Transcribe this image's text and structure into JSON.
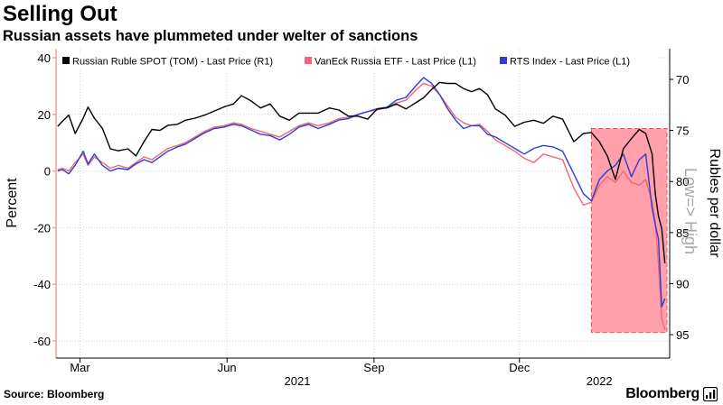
{
  "header": {
    "title": "Selling Out",
    "subtitle": "Russian assets have plummeted under welter of sanctions"
  },
  "footer": {
    "source": "Source: Bloomberg",
    "brand": "Bloomberg"
  },
  "chart_data": {
    "type": "line",
    "title": "Selling Out",
    "subtitle": "Russian assets have plummeted under welter of sanctions",
    "ylabel_left": "Percent",
    "ylabel_right": "Rubles per dollar",
    "right_axis_note": "Low=> High",
    "ylim_left": [
      -60,
      40
    ],
    "ylim_right": [
      68,
      97
    ],
    "right_axis_inverted": true,
    "left_ticks": [
      "40",
      "20",
      "0",
      "-20",
      "-40",
      "-60"
    ],
    "left_tick_values": [
      40,
      20,
      0,
      -20,
      -40,
      -60
    ],
    "right_ticks": [
      "70",
      "75",
      "80",
      "85",
      "90",
      "95"
    ],
    "right_tick_values": [
      70,
      75,
      80,
      85,
      90,
      95
    ],
    "x_tick_labels": [
      "Mar",
      "Jun",
      "Sep",
      "Dec"
    ],
    "x_tick_values": [
      "2021-03-01",
      "2021-06-01",
      "2021-09-01",
      "2021-12-01"
    ],
    "x_year_labels": [
      "2021",
      "2022"
    ],
    "x_year_values": [
      "2021-07-15",
      "2022-01-20"
    ],
    "xlim": [
      "2021-02-14",
      "2022-03-05"
    ],
    "grid": true,
    "legend_position": "top",
    "highlight": {
      "x_start": "2022-01-15",
      "x_end": "2022-03-05",
      "y_from": -57,
      "y_to": 15,
      "color": "#ff8f9c"
    },
    "series": [
      {
        "name": "Russian Ruble SPOT (TOM) - Last Price (R1)",
        "axis": "right",
        "color": "#000000",
        "x": [
          "2021-02-15",
          "2021-02-18",
          "2021-02-22",
          "2021-02-26",
          "2021-03-03",
          "2021-03-06",
          "2021-03-10",
          "2021-03-15",
          "2021-03-20",
          "2021-03-25",
          "2021-03-31",
          "2021-04-05",
          "2021-04-10",
          "2021-04-15",
          "2021-04-20",
          "2021-04-25",
          "2021-05-01",
          "2021-05-06",
          "2021-05-12",
          "2021-05-18",
          "2021-05-24",
          "2021-05-30",
          "2021-06-05",
          "2021-06-10",
          "2021-06-16",
          "2021-06-22",
          "2021-06-28",
          "2021-07-04",
          "2021-07-10",
          "2021-07-16",
          "2021-07-22",
          "2021-07-28",
          "2021-08-04",
          "2021-08-10",
          "2021-08-16",
          "2021-08-22",
          "2021-08-28",
          "2021-09-03",
          "2021-09-09",
          "2021-09-15",
          "2021-09-21",
          "2021-09-27",
          "2021-10-02",
          "2021-10-07",
          "2021-10-12",
          "2021-10-17",
          "2021-10-22",
          "2021-10-27",
          "2021-11-01",
          "2021-11-06",
          "2021-11-11",
          "2021-11-16",
          "2021-11-22",
          "2021-11-28",
          "2021-12-04",
          "2021-12-10",
          "2021-12-16",
          "2021-12-22",
          "2021-12-28",
          "2022-01-04",
          "2022-01-10",
          "2022-01-15",
          "2022-01-20",
          "2022-01-25",
          "2022-01-30",
          "2022-02-04",
          "2022-02-09",
          "2022-02-14",
          "2022-02-18",
          "2022-02-22",
          "2022-02-24",
          "2022-02-26",
          "2022-02-28",
          "2022-03-02"
        ],
        "values": [
          74.6,
          74.1,
          73.5,
          75.3,
          73.8,
          72.7,
          73.8,
          74.8,
          76.8,
          77.0,
          76.8,
          77.5,
          76.1,
          74.9,
          75.0,
          74.5,
          74.4,
          74.0,
          73.8,
          73.5,
          73.1,
          72.7,
          72.4,
          71.6,
          72.1,
          72.8,
          72.4,
          73.6,
          74.0,
          73.3,
          73.3,
          73.3,
          72.8,
          73.0,
          73.6,
          73.6,
          73.9,
          72.9,
          72.8,
          72.4,
          72.9,
          72.3,
          71.8,
          71.0,
          70.3,
          70.4,
          70.4,
          70.9,
          71.2,
          70.9,
          71.5,
          72.9,
          73.5,
          74.6,
          74.2,
          74.0,
          74.3,
          73.6,
          73.9,
          76.1,
          75.3,
          75.2,
          76.1,
          77.5,
          79.8,
          76.8,
          75.8,
          74.9,
          75.3,
          77.3,
          81.2,
          83.4,
          84.6,
          88.0
        ]
      },
      {
        "name": "VanEck Russia ETF - Last Price (L1)",
        "axis": "left",
        "color": "#f26671",
        "x": [
          "2021-02-15",
          "2021-02-18",
          "2021-02-22",
          "2021-02-26",
          "2021-03-03",
          "2021-03-06",
          "2021-03-10",
          "2021-03-15",
          "2021-03-20",
          "2021-03-25",
          "2021-03-31",
          "2021-04-05",
          "2021-04-10",
          "2021-04-15",
          "2021-04-20",
          "2021-04-25",
          "2021-05-01",
          "2021-05-06",
          "2021-05-12",
          "2021-05-18",
          "2021-05-24",
          "2021-05-30",
          "2021-06-05",
          "2021-06-10",
          "2021-06-16",
          "2021-06-22",
          "2021-06-28",
          "2021-07-04",
          "2021-07-10",
          "2021-07-16",
          "2021-07-22",
          "2021-07-28",
          "2021-08-04",
          "2021-08-10",
          "2021-08-16",
          "2021-08-22",
          "2021-08-28",
          "2021-09-03",
          "2021-09-09",
          "2021-09-15",
          "2021-09-21",
          "2021-09-27",
          "2021-10-02",
          "2021-10-07",
          "2021-10-12",
          "2021-10-17",
          "2021-10-22",
          "2021-10-27",
          "2021-11-01",
          "2021-11-06",
          "2021-11-11",
          "2021-11-16",
          "2021-11-22",
          "2021-11-28",
          "2021-12-04",
          "2021-12-10",
          "2021-12-16",
          "2021-12-22",
          "2021-12-28",
          "2022-01-04",
          "2022-01-10",
          "2022-01-15",
          "2022-01-20",
          "2022-01-25",
          "2022-01-30",
          "2022-02-04",
          "2022-02-09",
          "2022-02-14",
          "2022-02-18",
          "2022-02-22",
          "2022-02-24",
          "2022-02-26",
          "2022-02-28",
          "2022-03-02"
        ],
        "values": [
          0.5,
          1.0,
          0.0,
          3.0,
          6.0,
          2.0,
          5.0,
          3.0,
          1.0,
          2.0,
          1.0,
          3.0,
          5.0,
          4.0,
          6.0,
          8.0,
          9.0,
          10.0,
          12.0,
          14.0,
          15.5,
          16.0,
          17.0,
          16.5,
          15.0,
          14.0,
          13.0,
          12.0,
          14.0,
          16.0,
          17.0,
          16.0,
          17.0,
          18.5,
          19.0,
          20.0,
          21.0,
          21.5,
          22.5,
          24.0,
          25.0,
          28.5,
          31.0,
          30.0,
          27.0,
          23.0,
          19.0,
          17.0,
          16.0,
          16.5,
          14.0,
          11.0,
          9.0,
          7.0,
          4.5,
          3.0,
          6.0,
          5.0,
          4.0,
          -6.0,
          -12.0,
          -11.0,
          -5.0,
          -2.0,
          -4.0,
          0.0,
          -4.0,
          -5.0,
          -3.0,
          -11.0,
          -18.0,
          -33.0,
          -52.0,
          -56.0
        ]
      },
      {
        "name": "RTS Index - Last Price (L1)",
        "axis": "left",
        "color": "#2b3fd4",
        "x": [
          "2021-02-15",
          "2021-02-18",
          "2021-02-22",
          "2021-02-26",
          "2021-03-03",
          "2021-03-06",
          "2021-03-10",
          "2021-03-15",
          "2021-03-20",
          "2021-03-25",
          "2021-03-31",
          "2021-04-05",
          "2021-04-10",
          "2021-04-15",
          "2021-04-20",
          "2021-04-25",
          "2021-05-01",
          "2021-05-06",
          "2021-05-12",
          "2021-05-18",
          "2021-05-24",
          "2021-05-30",
          "2021-06-05",
          "2021-06-10",
          "2021-06-16",
          "2021-06-22",
          "2021-06-28",
          "2021-07-04",
          "2021-07-10",
          "2021-07-16",
          "2021-07-22",
          "2021-07-28",
          "2021-08-04",
          "2021-08-10",
          "2021-08-16",
          "2021-08-22",
          "2021-08-28",
          "2021-09-03",
          "2021-09-09",
          "2021-09-15",
          "2021-09-21",
          "2021-09-27",
          "2021-10-02",
          "2021-10-07",
          "2021-10-12",
          "2021-10-17",
          "2021-10-22",
          "2021-10-27",
          "2021-11-01",
          "2021-11-06",
          "2021-11-11",
          "2021-11-16",
          "2021-11-22",
          "2021-11-28",
          "2021-12-04",
          "2021-12-10",
          "2021-12-16",
          "2021-12-22",
          "2021-12-28",
          "2022-01-04",
          "2022-01-10",
          "2022-01-15",
          "2022-01-20",
          "2022-01-25",
          "2022-01-30",
          "2022-02-04",
          "2022-02-09",
          "2022-02-14",
          "2022-02-18",
          "2022-02-22",
          "2022-02-24",
          "2022-02-26",
          "2022-02-28",
          "2022-03-02"
        ],
        "values": [
          0.0,
          0.5,
          -1.0,
          2.0,
          7.0,
          2.5,
          6.0,
          2.0,
          0.0,
          1.0,
          0.5,
          2.5,
          4.0,
          3.0,
          5.0,
          7.0,
          8.5,
          9.5,
          11.5,
          13.5,
          15.0,
          15.5,
          16.5,
          16.0,
          14.5,
          13.0,
          12.5,
          11.0,
          13.0,
          15.5,
          16.5,
          15.0,
          16.5,
          18.0,
          18.5,
          20.0,
          21.0,
          22.0,
          22.5,
          25.0,
          26.0,
          30.0,
          33.0,
          31.0,
          27.0,
          22.0,
          18.0,
          15.0,
          16.0,
          16.0,
          13.0,
          12.0,
          10.0,
          8.0,
          6.0,
          8.0,
          9.0,
          8.5,
          7.0,
          -1.0,
          -8.0,
          -10.5,
          -3.0,
          0.0,
          2.0,
          6.0,
          -2.0,
          4.0,
          6.0,
          -13.0,
          -19.0,
          -24.0,
          -48.0,
          -45.0
        ]
      }
    ]
  }
}
